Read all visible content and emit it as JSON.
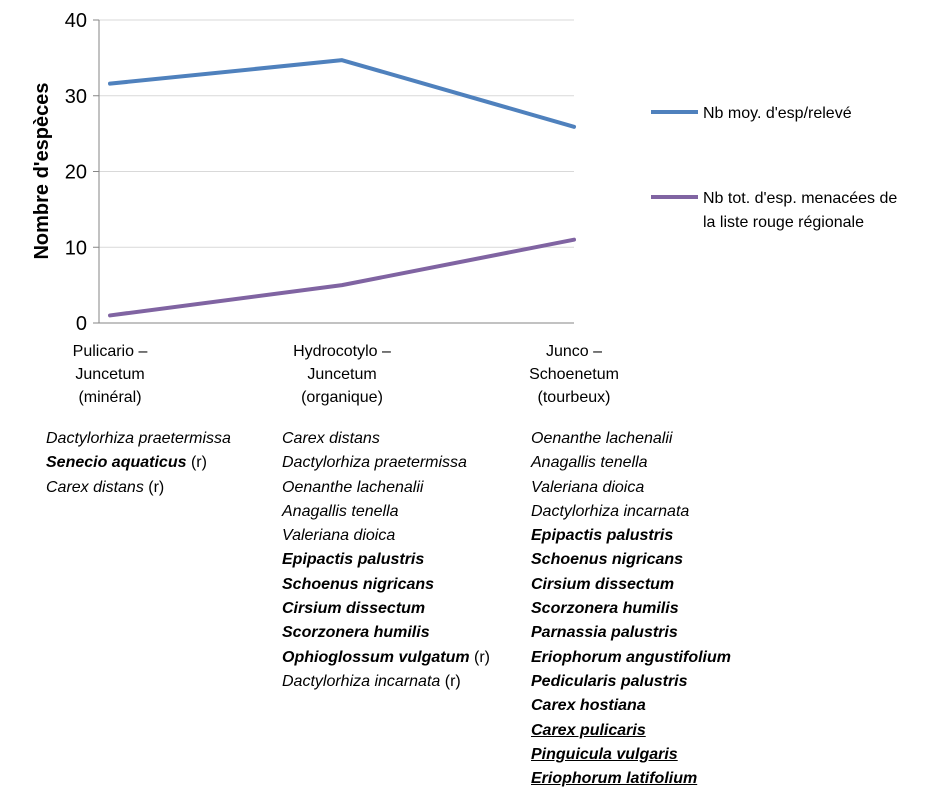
{
  "chart_data": {
    "type": "line",
    "ylabel": "Nombre d'espèces",
    "ylim": [
      0,
      40
    ],
    "yticks": [
      "0",
      "10",
      "20",
      "30",
      "40"
    ],
    "categories": [
      [
        "Pulicario –",
        "Juncetum",
        "(minéral)"
      ],
      [
        "Hydrocotylo –",
        "Juncetum",
        "(organique)"
      ],
      [
        "Junco –",
        "Schoenetum",
        "(tourbeux)"
      ]
    ],
    "series": [
      {
        "name": [
          "Nb moy. d'esp/relevé"
        ],
        "values": [
          31.6,
          34.7,
          25.9
        ],
        "color": "#4f81bd"
      },
      {
        "name": [
          "Nb tot. d'esp. menacées de",
          "la liste rouge régionale"
        ],
        "values": [
          1,
          5,
          11
        ],
        "color": "#8064a2"
      }
    ],
    "grid": true,
    "legend": "right"
  },
  "species": [
    [
      {
        "name": "Dactylorhiza praetermissa",
        "style": "italic"
      },
      {
        "name": "Senecio aquaticus",
        "style": "bold",
        "suffix": " (r)"
      },
      {
        "name": "Carex distans",
        "style": "italic",
        "suffix": " (r)"
      }
    ],
    [
      {
        "name": "Carex distans",
        "style": "italic"
      },
      {
        "name": "Dactylorhiza praetermissa",
        "style": "italic"
      },
      {
        "name": "Oenanthe lachenalii",
        "style": "italic"
      },
      {
        "name": "Anagallis tenella",
        "style": "italic"
      },
      {
        "name": "Valeriana dioica",
        "style": "italic"
      },
      {
        "name": "Epipactis palustris",
        "style": "bold"
      },
      {
        "name": "Schoenus nigricans",
        "style": "bold"
      },
      {
        "name": "Cirsium dissectum",
        "style": "bold"
      },
      {
        "name": "Scorzonera humilis",
        "style": "bold"
      },
      {
        "name": "Ophioglossum vulgatum",
        "style": "bold",
        "suffix": " (r)"
      },
      {
        "name": "Dactylorhiza incarnata",
        "style": "italic",
        "suffix": " (r)"
      }
    ],
    [
      {
        "name": "Oenanthe lachenalii",
        "style": "italic"
      },
      {
        "name": "Anagallis tenella",
        "style": "italic"
      },
      {
        "name": "Valeriana dioica",
        "style": "italic"
      },
      {
        "name": "Dactylorhiza incarnata",
        "style": "italic"
      },
      {
        "name": "Epipactis palustris",
        "style": "bold"
      },
      {
        "name": "Schoenus nigricans",
        "style": "bold"
      },
      {
        "name": "Cirsium dissectum",
        "style": "bold"
      },
      {
        "name": "Scorzonera humilis",
        "style": "bold"
      },
      {
        "name": "Parnassia palustris",
        "style": "bold"
      },
      {
        "name": "Eriophorum angustifolium",
        "style": "bold"
      },
      {
        "name": "Pedicularis palustris",
        "style": "bold"
      },
      {
        "name": "Carex hostiana",
        "style": "bold"
      },
      {
        "name": "Carex pulicaris",
        "style": "underline"
      },
      {
        "name": "Pinguicula vulgaris",
        "style": "underline"
      },
      {
        "name": "Eriophorum latifolium",
        "style": "underline"
      }
    ]
  ]
}
